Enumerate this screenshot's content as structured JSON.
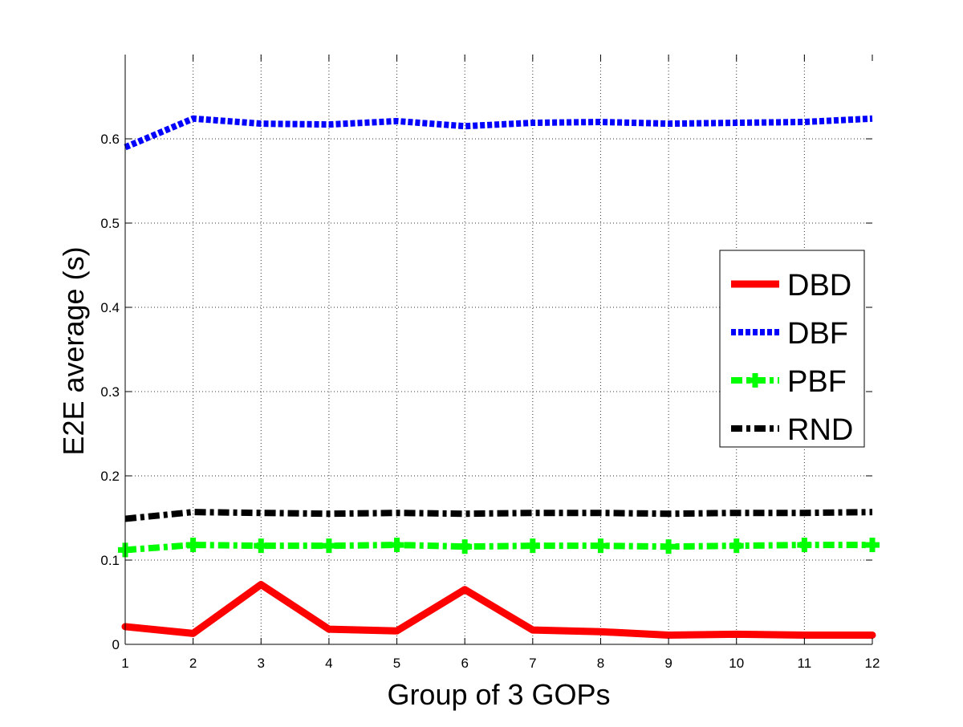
{
  "chart_data": {
    "type": "line",
    "title": "",
    "xlabel": "Group of 3 GOPs",
    "ylabel": "E2E average (s)",
    "xlim": [
      1,
      12
    ],
    "ylim": [
      0,
      0.7
    ],
    "xticks": [
      1,
      2,
      3,
      4,
      5,
      6,
      7,
      8,
      9,
      10,
      11,
      12
    ],
    "yticks": [
      0,
      0.1,
      0.2,
      0.3,
      0.4,
      0.5,
      0.6
    ],
    "ytick_labels": [
      "0",
      "0.1",
      "0.2",
      "0.3",
      "0.4",
      "0.5",
      "0.6"
    ],
    "grid": true,
    "legend_position": "right",
    "x": [
      1,
      2,
      3,
      4,
      5,
      6,
      7,
      8,
      9,
      10,
      11,
      12
    ],
    "series": [
      {
        "name": "DBD",
        "color": "#ff0000",
        "style": "solid",
        "marker": "none",
        "values": [
          0.021,
          0.013,
          0.071,
          0.018,
          0.016,
          0.065,
          0.017,
          0.015,
          0.011,
          0.012,
          0.011,
          0.011
        ]
      },
      {
        "name": "DBF",
        "color": "#0000ff",
        "style": "dotted",
        "marker": "none",
        "values": [
          0.59,
          0.624,
          0.618,
          0.617,
          0.621,
          0.615,
          0.619,
          0.62,
          0.618,
          0.619,
          0.62,
          0.624
        ]
      },
      {
        "name": "PBF",
        "color": "#00ff00",
        "style": "dash-dot",
        "marker": "plus",
        "values": [
          0.112,
          0.118,
          0.117,
          0.117,
          0.118,
          0.116,
          0.117,
          0.117,
          0.116,
          0.117,
          0.118,
          0.118
        ]
      },
      {
        "name": "RND",
        "color": "#000000",
        "style": "dash-dot",
        "marker": "none",
        "values": [
          0.149,
          0.157,
          0.156,
          0.155,
          0.156,
          0.155,
          0.156,
          0.156,
          0.155,
          0.156,
          0.156,
          0.157
        ]
      }
    ]
  }
}
